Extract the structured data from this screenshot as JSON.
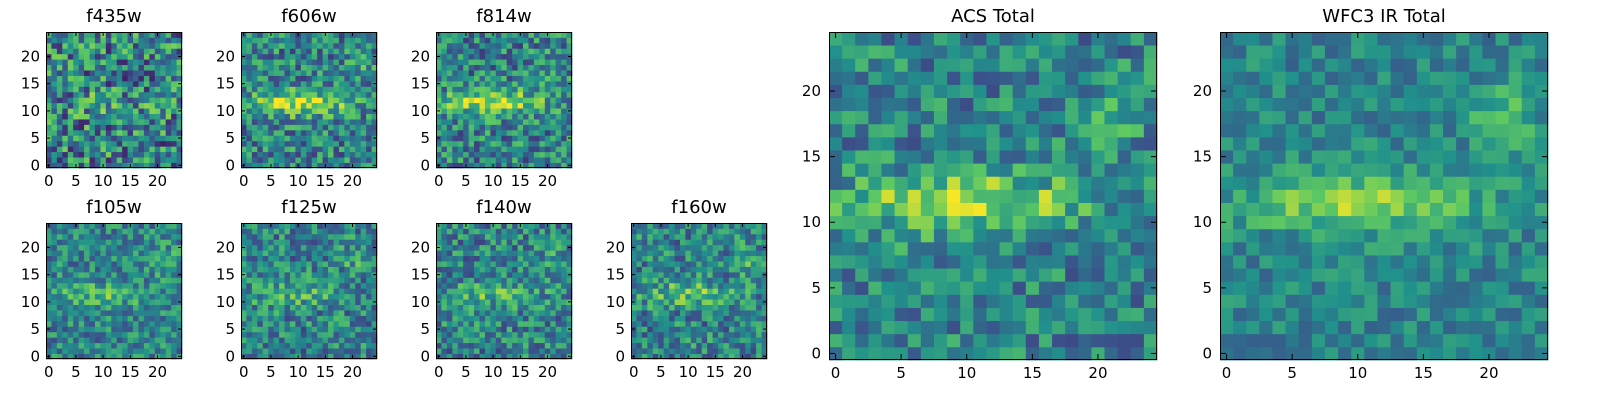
{
  "chart_data": [
    {
      "type": "heatmap",
      "title": "f435w",
      "xticks": [
        0,
        5,
        10,
        15,
        20
      ],
      "yticks": [
        0,
        5,
        10,
        15,
        20
      ],
      "size": 25,
      "seed": 11,
      "band_strength": 0.18,
      "blob_strength": 0.05,
      "noise": 0.7
    },
    {
      "type": "heatmap",
      "title": "f606w",
      "xticks": [
        0,
        5,
        10,
        15,
        20
      ],
      "yticks": [
        0,
        5,
        10,
        15,
        20
      ],
      "size": 25,
      "seed": 23,
      "band_strength": 0.85,
      "blob_strength": 0.3,
      "noise": 0.55
    },
    {
      "type": "heatmap",
      "title": "f814w",
      "xticks": [
        0,
        5,
        10,
        15,
        20
      ],
      "yticks": [
        0,
        5,
        10,
        15,
        20
      ],
      "size": 25,
      "seed": 37,
      "band_strength": 0.8,
      "blob_strength": 0.3,
      "noise": 0.55
    },
    {
      "type": "heatmap",
      "title": "f105w",
      "xticks": [
        0,
        5,
        10,
        15,
        20
      ],
      "yticks": [
        0,
        5,
        10,
        15,
        20
      ],
      "size": 25,
      "seed": 41,
      "band_strength": 0.4,
      "blob_strength": 0.35,
      "noise": 0.45
    },
    {
      "type": "heatmap",
      "title": "f125w",
      "xticks": [
        0,
        5,
        10,
        15,
        20
      ],
      "yticks": [
        0,
        5,
        10,
        15,
        20
      ],
      "size": 25,
      "seed": 53,
      "band_strength": 0.35,
      "blob_strength": 0.35,
      "noise": 0.5
    },
    {
      "type": "heatmap",
      "title": "f140w",
      "xticks": [
        0,
        5,
        10,
        15,
        20
      ],
      "yticks": [
        0,
        5,
        10,
        15,
        20
      ],
      "size": 25,
      "seed": 67,
      "band_strength": 0.4,
      "blob_strength": 0.3,
      "noise": 0.5
    },
    {
      "type": "heatmap",
      "title": "f160w",
      "xticks": [
        0,
        5,
        10,
        15,
        20
      ],
      "yticks": [
        0,
        5,
        10,
        15,
        20
      ],
      "size": 25,
      "seed": 79,
      "band_strength": 0.5,
      "blob_strength": 0.35,
      "noise": 0.5
    },
    {
      "type": "heatmap",
      "title": "ACS Total",
      "xticks": [
        0,
        5,
        10,
        15,
        20
      ],
      "yticks": [
        0,
        5,
        10,
        15,
        20
      ],
      "size": 25,
      "seed": 83,
      "band_strength": 0.8,
      "blob_strength": 0.3,
      "noise": 0.45
    },
    {
      "type": "heatmap",
      "title": "WFC3 IR Total",
      "xticks": [
        0,
        5,
        10,
        15,
        20
      ],
      "yticks": [
        0,
        5,
        10,
        15,
        20
      ],
      "size": 25,
      "seed": 97,
      "band_strength": 0.7,
      "blob_strength": 0.5,
      "noise": 0.3
    }
  ],
  "colormap": [
    "#440154",
    "#3b528b",
    "#21918c",
    "#5ec962",
    "#fde725"
  ]
}
